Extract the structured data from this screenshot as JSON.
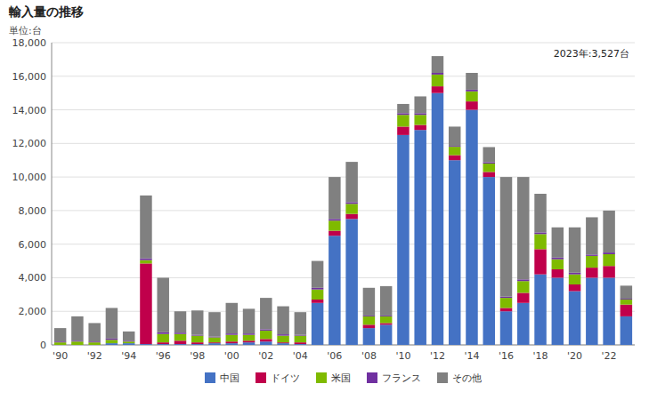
{
  "chart_data": {
    "type": "bar",
    "stacked": true,
    "title": "輸入量の推移",
    "ylabel": "単位:台",
    "annotation": "2023年:3,527台",
    "categories": [
      "'90",
      null,
      "'92",
      null,
      "'94",
      null,
      "'96",
      null,
      "'98",
      null,
      "'00",
      null,
      "'02",
      null,
      "'04",
      null,
      "'06",
      null,
      "'08",
      null,
      "'10",
      null,
      "'12",
      null,
      "'14",
      null,
      "'16",
      null,
      "'18",
      null,
      "'20",
      null,
      "'22",
      null
    ],
    "series": [
      {
        "name": "中国",
        "color": "#4472c4",
        "values": [
          0,
          0,
          0,
          100,
          100,
          50,
          50,
          50,
          50,
          100,
          100,
          150,
          200,
          100,
          50,
          2500,
          6500,
          7500,
          1000,
          1200,
          12500,
          12800,
          15000,
          11000,
          14000,
          10000,
          2000,
          2500,
          4200,
          4000,
          3200,
          4000,
          4000,
          1700
        ]
      },
      {
        "name": "ドイツ",
        "color": "#c0004b",
        "values": [
          0,
          0,
          0,
          0,
          0,
          4800,
          100,
          200,
          100,
          50,
          100,
          100,
          150,
          50,
          100,
          200,
          300,
          300,
          200,
          100,
          500,
          300,
          400,
          300,
          500,
          300,
          200,
          600,
          1500,
          500,
          400,
          600,
          700,
          700
        ]
      },
      {
        "name": "米国",
        "color": "#7fba00",
        "values": [
          150,
          200,
          150,
          200,
          100,
          200,
          500,
          400,
          400,
          300,
          400,
          350,
          500,
          400,
          400,
          600,
          600,
          600,
          500,
          400,
          700,
          600,
          700,
          500,
          600,
          500,
          600,
          700,
          900,
          600,
          600,
          700,
          700,
          300
        ]
      },
      {
        "name": "フランス",
        "color": "#7030a0",
        "values": [
          50,
          50,
          50,
          80,
          50,
          100,
          100,
          80,
          50,
          50,
          80,
          80,
          80,
          80,
          50,
          100,
          100,
          100,
          50,
          50,
          100,
          100,
          100,
          50,
          100,
          80,
          80,
          100,
          100,
          100,
          100,
          80,
          100,
          50
        ]
      },
      {
        "name": "その他",
        "color": "#808080",
        "values": [
          800,
          1450,
          1100,
          1820,
          550,
          3750,
          3250,
          1270,
          1450,
          1450,
          1820,
          1470,
          1870,
          1670,
          1350,
          1600,
          2500,
          2400,
          1650,
          1750,
          550,
          1000,
          1000,
          1150,
          1000,
          900,
          7120,
          6100,
          2300,
          1800,
          2700,
          2220,
          2500,
          777
        ]
      }
    ],
    "ylim": [
      0,
      18000
    ],
    "yticks": [
      0,
      {
        "value": 2000,
        "label": "2,000"
      },
      {
        "value": 4000,
        "label": "4,000"
      },
      {
        "value": 6000,
        "label": "6,000"
      },
      {
        "value": 8000,
        "label": "8,000"
      },
      {
        "value": 10000,
        "label": "10,000"
      },
      {
        "value": 12000,
        "label": "12,000"
      },
      {
        "value": 14000,
        "label": "14,000"
      },
      {
        "value": 16000,
        "label": "16,000"
      },
      {
        "value": 18000,
        "label": "18,000"
      }
    ],
    "grid": true,
    "legend": "bottom"
  }
}
